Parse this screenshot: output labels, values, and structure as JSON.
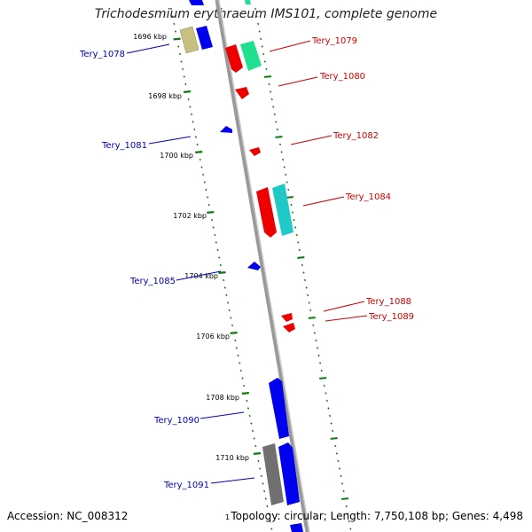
{
  "title": "Trichodesmium erythraeum IMS101, complete genome",
  "accession": "Accession: NC_008312",
  "topology": "Topology: circular; Length: 7,750,108 bp; Genes: 4,498",
  "ticks": [
    "1696 kbp",
    "1698 kbp",
    "1700 kbp",
    "1702 kbp",
    "1704 kbp",
    "1706 kbp",
    "1708 kbp",
    "1710 kbp"
  ],
  "gene_labels": {
    "left": [
      "Tery_1078",
      "Tery_1081",
      "Tery_1085",
      "Tery_1090",
      "Tery_1091"
    ],
    "right": [
      "Tery_1079",
      "Tery_1080",
      "Tery_1082",
      "Tery_1084",
      "Tery_1088",
      "Tery_1089"
    ]
  },
  "colors": {
    "forward_label": "#cc0000",
    "reverse_label": "#0000bb",
    "red_gene": "#ee0000",
    "blue_gene": "#0000ee",
    "teal_gene": "#20c8c8",
    "green_gene": "#20e090",
    "olive_gene": "#c8c080",
    "gray_gene": "#707070",
    "backbone": "#999999",
    "tick": "#0a7a0a"
  },
  "extra_label": "1"
}
